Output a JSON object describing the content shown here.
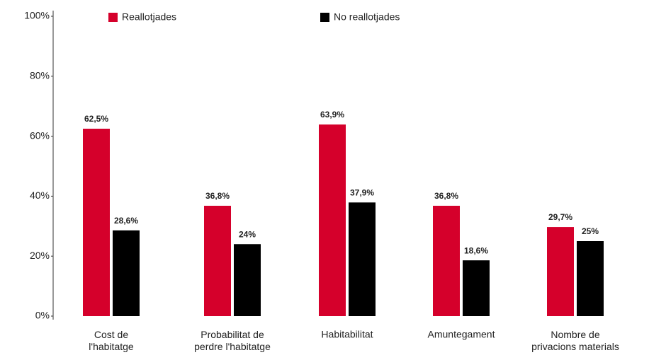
{
  "chart_data": {
    "type": "bar",
    "categories": [
      "Cost de\nl'habitatge",
      "Probabilitat de\nperdre l'habitatge",
      "Habitabilitat",
      "Amuntegament",
      "Nombre de\nprivacions materials"
    ],
    "series": [
      {
        "name": "Reallotjades",
        "color": "#d5002b",
        "values": [
          62.5,
          36.8,
          63.9,
          36.8,
          29.7
        ],
        "value_labels": [
          "62,5%",
          "36,8%",
          "63,9%",
          "36,8%",
          "29,7%"
        ]
      },
      {
        "name": "No reallotjades",
        "color": "#000000",
        "values": [
          28.6,
          24,
          37.9,
          18.6,
          25
        ],
        "value_labels": [
          "28,6%",
          "24%",
          "37,9%",
          "18,6%",
          "25%"
        ]
      }
    ],
    "ylim": [
      0,
      100
    ],
    "yticks": [
      {
        "value": 0,
        "label": "0%"
      },
      {
        "value": 20,
        "label": "20%"
      },
      {
        "value": 40,
        "label": "40%"
      },
      {
        "value": 60,
        "label": "60%"
      },
      {
        "value": 80,
        "label": "80%"
      },
      {
        "value": 100,
        "label": "100%"
      }
    ],
    "legend": "top"
  }
}
